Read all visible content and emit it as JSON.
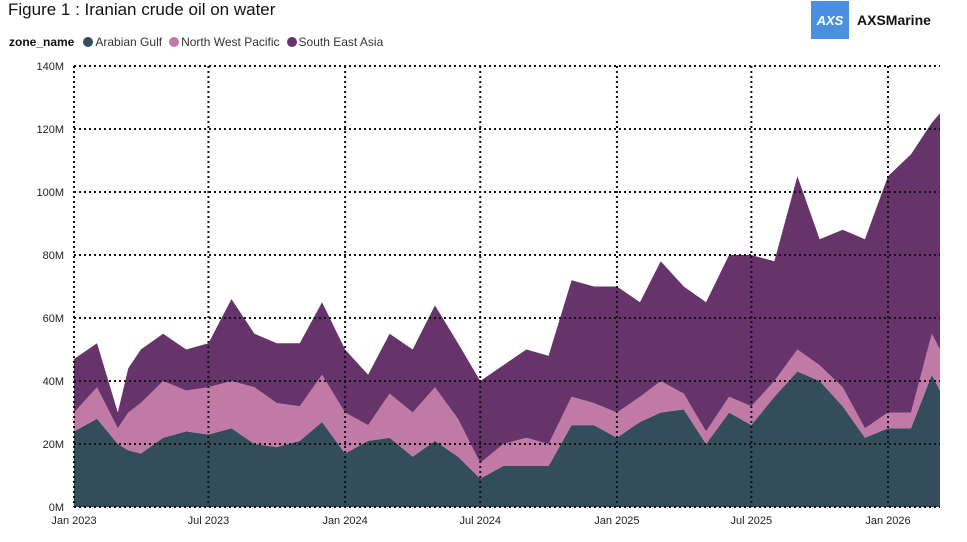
{
  "chart_data": {
    "type": "area",
    "stacked": true,
    "title": "Figure 1 : Iranian crude oil on water",
    "legend_title": "zone_name",
    "legend_position": "top-left",
    "grid": true,
    "ylim": [
      0,
      140000000
    ],
    "yticks": [
      "0M",
      "20M",
      "40M",
      "60M",
      "80M",
      "100M",
      "120M",
      "140M"
    ],
    "xticks": [
      "Jan 2023",
      "Jul 2023",
      "Jan 2024",
      "Jul 2024",
      "Jan 2025",
      "Jul 2025",
      "Jan 2026"
    ],
    "x": [
      "2023-01-01",
      "2023-02-01",
      "2023-03-01",
      "2023-03-15",
      "2023-04-01",
      "2023-05-01",
      "2023-06-01",
      "2023-07-01",
      "2023-08-01",
      "2023-09-01",
      "2023-10-01",
      "2023-11-01",
      "2023-12-01",
      "2024-01-01",
      "2024-02-01",
      "2024-03-01",
      "2024-04-01",
      "2024-05-01",
      "2024-06-01",
      "2024-07-01",
      "2024-08-01",
      "2024-09-01",
      "2024-10-01",
      "2024-11-01",
      "2024-12-01",
      "2025-01-01",
      "2025-02-01",
      "2025-03-01",
      "2025-04-01",
      "2025-05-01",
      "2025-06-01",
      "2025-07-01",
      "2025-08-01",
      "2025-09-01",
      "2025-10-01",
      "2025-11-01",
      "2025-12-01",
      "2026-01-01",
      "2026-02-01",
      "2026-03-01",
      "2026-03-12"
    ],
    "series": [
      {
        "name": "Arabian Gulf",
        "color": "#344d5c",
        "values": [
          24,
          28,
          20,
          18,
          17,
          22,
          24,
          23,
          25,
          20,
          19,
          21,
          27,
          17,
          21,
          22,
          16,
          21,
          16,
          9,
          13,
          13,
          13,
          26,
          26,
          22,
          27,
          30,
          31,
          20,
          30,
          26,
          35,
          43,
          40,
          32,
          22,
          25,
          25,
          42,
          37
        ]
      },
      {
        "name": "North West Pacific",
        "color": "#c17aa6",
        "values": [
          6,
          10,
          5,
          12,
          16,
          18,
          13,
          15,
          15,
          18,
          14,
          11,
          15,
          13,
          5,
          14,
          14,
          17,
          12,
          5,
          7,
          9,
          7,
          9,
          7,
          8,
          8,
          10,
          5,
          4,
          5,
          6,
          5,
          7,
          5,
          6,
          3,
          5,
          5,
          13,
          13
        ]
      },
      {
        "name": "South East Asia",
        "color": "#66336a",
        "values": [
          17,
          14,
          5,
          14,
          17,
          15,
          13,
          14,
          26,
          17,
          19,
          20,
          23,
          20,
          16,
          19,
          20,
          26,
          24,
          26,
          25,
          28,
          28,
          37,
          37,
          40,
          30,
          38,
          34,
          41,
          45,
          48,
          38,
          55,
          40,
          50,
          60,
          75,
          82,
          67,
          75
        ]
      }
    ],
    "unit": "M"
  }
}
